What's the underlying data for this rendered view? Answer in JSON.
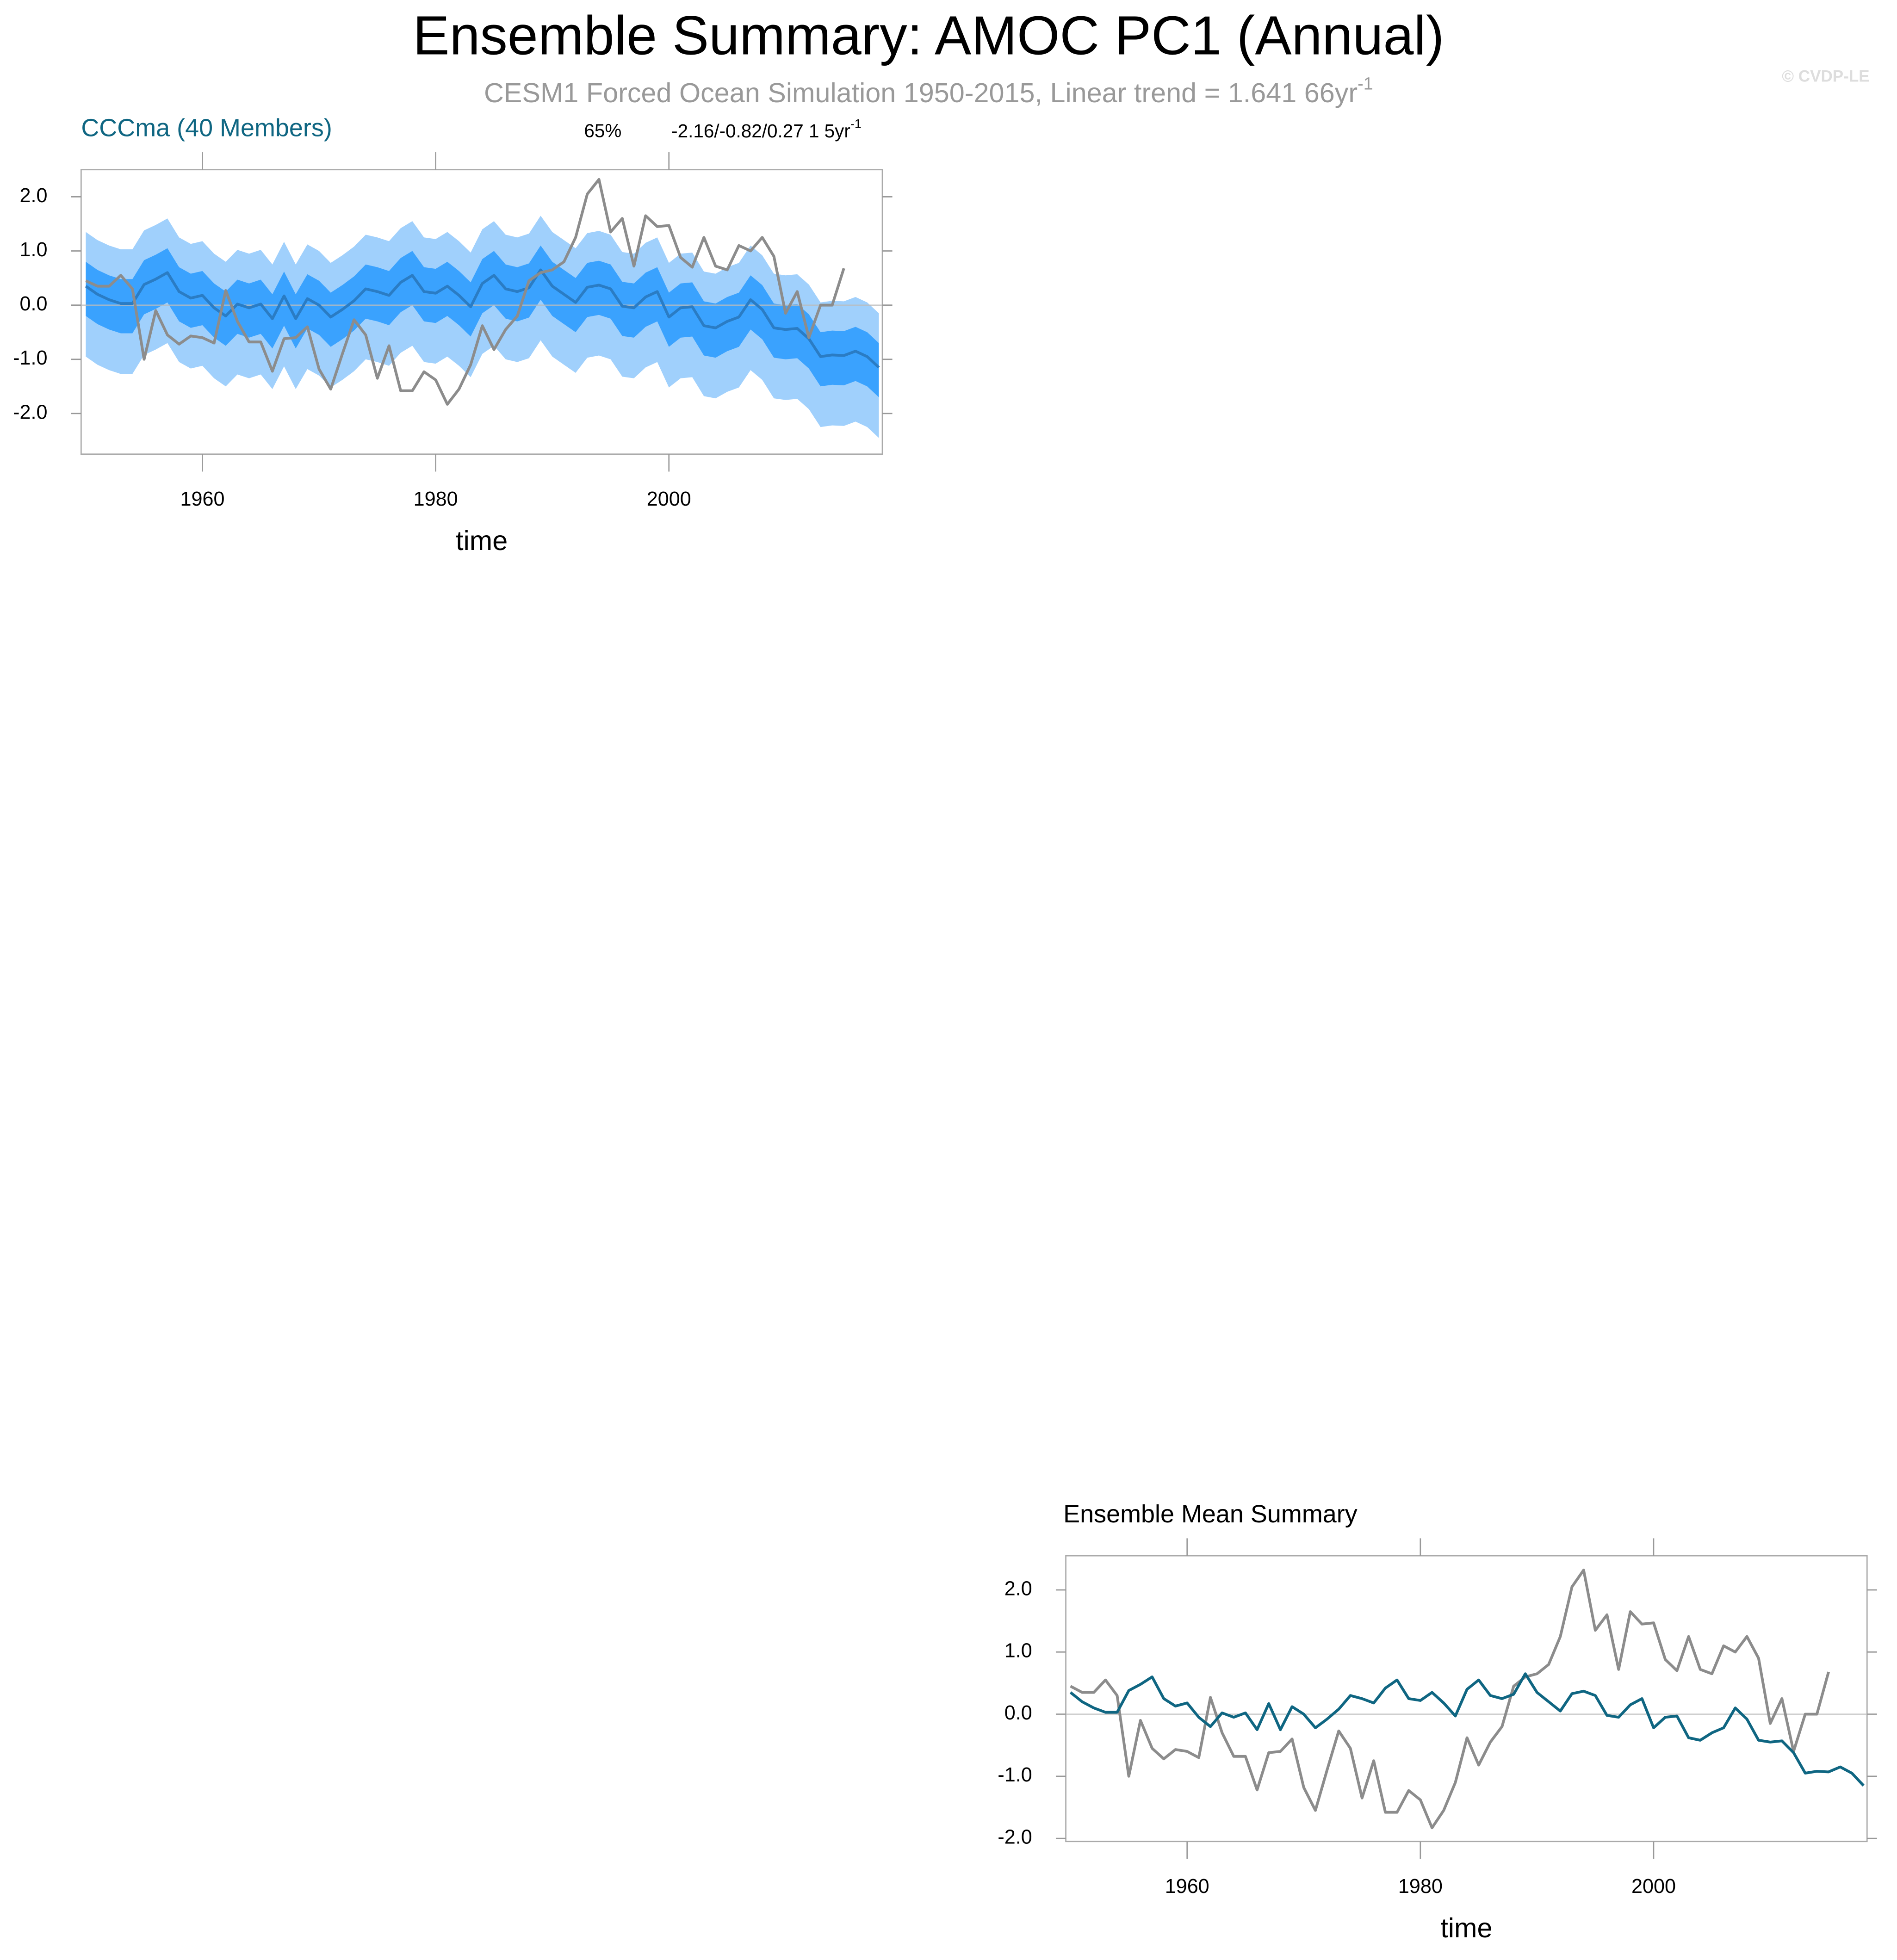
{
  "header": {
    "title": "Ensemble Summary: AMOC PC1 (Annual)",
    "subtitle": {
      "text": "CESM1 Forced Ocean Simulation 1950-2015, Linear trend = 1.641 66yr",
      "superscript": "-1"
    },
    "copyright": "© CVDP-LE"
  },
  "chart_data": [
    {
      "type": "band",
      "title": "CCCma (40 Members)",
      "annotations": [
        {
          "text": "65%"
        },
        {
          "text": "-2.16/-0.82/0.27 1 5yr",
          "superscript": "-1"
        }
      ],
      "x_label": "time",
      "x": [
        1950,
        1951,
        1952,
        1953,
        1954,
        1955,
        1956,
        1957,
        1958,
        1959,
        1960,
        1961,
        1962,
        1963,
        1964,
        1965,
        1966,
        1967,
        1968,
        1969,
        1970,
        1971,
        1972,
        1973,
        1974,
        1975,
        1976,
        1977,
        1978,
        1979,
        1980,
        1981,
        1982,
        1983,
        1984,
        1985,
        1986,
        1987,
        1988,
        1989,
        1990,
        1991,
        1992,
        1993,
        1994,
        1995,
        1996,
        1997,
        1998,
        1999,
        2000,
        2001,
        2002,
        2003,
        2004,
        2005,
        2006,
        2007,
        2008,
        2009,
        2010,
        2011,
        2012,
        2013,
        2014,
        2015,
        2016,
        2017,
        2018
      ],
      "xlim": [
        1949.6,
        2018.3
      ],
      "xticks": [
        1960,
        1980,
        2000
      ],
      "ylim": [
        -2.75,
        2.5
      ],
      "yticks": [
        {
          "value": 2,
          "label": "2.0"
        },
        {
          "value": 1,
          "label": "1.0"
        },
        {
          "value": 0,
          "label": "0.0"
        },
        {
          "value": -1,
          "label": "-1.0"
        },
        {
          "value": -2,
          "label": "-2.0"
        }
      ],
      "bands": [
        {
          "color": "#a0d0fc",
          "upper": [
            1.35,
            1.2,
            1.1,
            1.03,
            1.03,
            1.38,
            1.48,
            1.6,
            1.25,
            1.13,
            1.18,
            0.95,
            0.8,
            1.02,
            0.95,
            1.02,
            0.75,
            1.17,
            0.75,
            1.12,
            1.0,
            0.78,
            0.92,
            1.08,
            1.3,
            1.25,
            1.18,
            1.42,
            1.55,
            1.25,
            1.22,
            1.35,
            1.18,
            0.97,
            1.4,
            1.55,
            1.3,
            1.25,
            1.32,
            1.65,
            1.35,
            1.2,
            1.05,
            1.33,
            1.37,
            1.3,
            0.98,
            0.95,
            1.15,
            1.25,
            0.78,
            0.95,
            0.97,
            0.62,
            0.58,
            0.7,
            0.78,
            1.1,
            0.92,
            0.58,
            0.55,
            0.57,
            0.38,
            0.05,
            0.08,
            0.07,
            0.15,
            0.05,
            -0.15
          ],
          "lower": [
            -0.95,
            -1.1,
            -1.2,
            -1.27,
            -1.27,
            -0.92,
            -0.82,
            -0.7,
            -1.05,
            -1.17,
            -1.12,
            -1.35,
            -1.5,
            -1.28,
            -1.35,
            -1.28,
            -1.55,
            -1.13,
            -1.55,
            -1.18,
            -1.3,
            -1.52,
            -1.38,
            -1.22,
            -1.0,
            -1.05,
            -1.12,
            -0.88,
            -0.75,
            -1.05,
            -1.08,
            -0.95,
            -1.12,
            -1.33,
            -0.9,
            -0.75,
            -1.0,
            -1.05,
            -0.98,
            -0.65,
            -0.95,
            -1.1,
            -1.25,
            -0.97,
            -0.93,
            -1.0,
            -1.32,
            -1.35,
            -1.15,
            -1.05,
            -1.52,
            -1.35,
            -1.33,
            -1.68,
            -1.72,
            -1.6,
            -1.52,
            -1.2,
            -1.38,
            -1.72,
            -1.75,
            -1.73,
            -1.92,
            -2.25,
            -2.22,
            -2.23,
            -2.15,
            -2.25,
            -2.45
          ]
        },
        {
          "color": "#3aa2fe",
          "upper": [
            0.8,
            0.65,
            0.55,
            0.48,
            0.48,
            0.83,
            0.93,
            1.05,
            0.7,
            0.58,
            0.63,
            0.4,
            0.25,
            0.47,
            0.4,
            0.47,
            0.2,
            0.62,
            0.2,
            0.57,
            0.45,
            0.23,
            0.37,
            0.53,
            0.75,
            0.7,
            0.63,
            0.87,
            1.0,
            0.7,
            0.67,
            0.8,
            0.63,
            0.42,
            0.85,
            1.0,
            0.75,
            0.7,
            0.77,
            1.1,
            0.8,
            0.65,
            0.5,
            0.78,
            0.82,
            0.75,
            0.43,
            0.4,
            0.6,
            0.7,
            0.23,
            0.4,
            0.42,
            0.07,
            0.03,
            0.15,
            0.23,
            0.55,
            0.37,
            0.03,
            0.0,
            0.02,
            -0.17,
            -0.5,
            -0.47,
            -0.48,
            -0.4,
            -0.5,
            -0.7
          ],
          "lower": [
            -0.2,
            -0.35,
            -0.45,
            -0.52,
            -0.52,
            -0.17,
            -0.07,
            0.05,
            -0.3,
            -0.42,
            -0.37,
            -0.6,
            -0.75,
            -0.53,
            -0.6,
            -0.53,
            -0.8,
            -0.38,
            -0.8,
            -0.43,
            -0.55,
            -0.77,
            -0.63,
            -0.47,
            -0.25,
            -0.3,
            -0.37,
            -0.13,
            0.0,
            -0.3,
            -0.33,
            -0.2,
            -0.37,
            -0.58,
            -0.15,
            0.0,
            -0.25,
            -0.3,
            -0.23,
            0.1,
            -0.2,
            -0.35,
            -0.5,
            -0.22,
            -0.18,
            -0.25,
            -0.57,
            -0.6,
            -0.4,
            -0.3,
            -0.77,
            -0.6,
            -0.58,
            -0.93,
            -0.97,
            -0.85,
            -0.77,
            -0.45,
            -0.63,
            -0.97,
            -1.0,
            -0.98,
            -1.17,
            -1.5,
            -1.47,
            -1.48,
            -1.4,
            -1.5,
            -1.7
          ]
        }
      ],
      "series": [
        {
          "color": "#2a7cc4",
          "values": [
            0.35,
            0.2,
            0.1,
            0.03,
            0.03,
            0.38,
            0.48,
            0.6,
            0.25,
            0.13,
            0.18,
            -0.05,
            -0.2,
            0.02,
            -0.05,
            0.02,
            -0.25,
            0.17,
            -0.25,
            0.12,
            0.0,
            -0.22,
            -0.08,
            0.08,
            0.3,
            0.25,
            0.18,
            0.42,
            0.55,
            0.25,
            0.22,
            0.35,
            0.18,
            -0.03,
            0.4,
            0.55,
            0.3,
            0.25,
            0.32,
            0.65,
            0.35,
            0.2,
            0.05,
            0.33,
            0.37,
            0.3,
            -0.02,
            -0.05,
            0.15,
            0.25,
            -0.22,
            -0.05,
            -0.03,
            -0.38,
            -0.42,
            -0.3,
            -0.22,
            0.1,
            -0.08,
            -0.42,
            -0.45,
            -0.43,
            -0.62,
            -0.95,
            -0.92,
            -0.93,
            -0.85,
            -0.95,
            -1.15
          ]
        },
        {
          "color": "#8c8c8c",
          "values": [
            0.45,
            0.35,
            0.35,
            0.55,
            0.3,
            -1.0,
            -0.1,
            -0.55,
            -0.72,
            -0.57,
            -0.6,
            -0.7,
            0.27,
            -0.3,
            -0.68,
            -0.68,
            -1.22,
            -0.62,
            -0.6,
            -0.4,
            -1.18,
            -1.55,
            -0.9,
            -0.27,
            -0.55,
            -1.35,
            -0.75,
            -1.58,
            -1.58,
            -1.23,
            -1.38,
            -1.83,
            -1.55,
            -1.1,
            -0.38,
            -0.82,
            -0.45,
            -0.2,
            0.45,
            0.6,
            0.65,
            0.8,
            1.25,
            2.05,
            2.32,
            1.35,
            1.6,
            0.72,
            1.65,
            1.45,
            1.47,
            0.88,
            0.7,
            1.25,
            0.72,
            0.65,
            1.1,
            1.0,
            1.25,
            0.9,
            -0.15,
            0.25,
            -0.6,
            0.0,
            0.0,
            0.68,
            null,
            null,
            null
          ]
        }
      ]
    },
    {
      "type": "line",
      "title": "Ensemble Mean Summary",
      "x_label": "time",
      "x": [
        1950,
        1951,
        1952,
        1953,
        1954,
        1955,
        1956,
        1957,
        1958,
        1959,
        1960,
        1961,
        1962,
        1963,
        1964,
        1965,
        1966,
        1967,
        1968,
        1969,
        1970,
        1971,
        1972,
        1973,
        1974,
        1975,
        1976,
        1977,
        1978,
        1979,
        1980,
        1981,
        1982,
        1983,
        1984,
        1985,
        1986,
        1987,
        1988,
        1989,
        1990,
        1991,
        1992,
        1993,
        1994,
        1995,
        1996,
        1997,
        1998,
        1999,
        2000,
        2001,
        2002,
        2003,
        2004,
        2005,
        2006,
        2007,
        2008,
        2009,
        2010,
        2011,
        2012,
        2013,
        2014,
        2015,
        2016,
        2017,
        2018
      ],
      "xlim": [
        1949.6,
        2018.3
      ],
      "xticks": [
        1960,
        1980,
        2000
      ],
      "ylim": [
        -2.05,
        2.55
      ],
      "yticks": [
        {
          "value": 2,
          "label": "2.0"
        },
        {
          "value": 1,
          "label": "1.0"
        },
        {
          "value": 0,
          "label": "0.0"
        },
        {
          "value": -1,
          "label": "-1.0"
        },
        {
          "value": -2,
          "label": "-2.0"
        }
      ],
      "series": [
        {
          "color": "#8c8c8c",
          "values": [
            0.45,
            0.35,
            0.35,
            0.55,
            0.3,
            -1.0,
            -0.1,
            -0.55,
            -0.72,
            -0.57,
            -0.6,
            -0.7,
            0.27,
            -0.3,
            -0.68,
            -0.68,
            -1.22,
            -0.62,
            -0.6,
            -0.4,
            -1.18,
            -1.55,
            -0.9,
            -0.27,
            -0.55,
            -1.35,
            -0.75,
            -1.58,
            -1.58,
            -1.23,
            -1.38,
            -1.83,
            -1.55,
            -1.1,
            -0.38,
            -0.82,
            -0.45,
            -0.2,
            0.45,
            0.6,
            0.65,
            0.8,
            1.25,
            2.05,
            2.32,
            1.35,
            1.6,
            0.72,
            1.65,
            1.45,
            1.47,
            0.88,
            0.7,
            1.25,
            0.72,
            0.65,
            1.1,
            1.0,
            1.25,
            0.9,
            -0.15,
            0.25,
            -0.6,
            0.0,
            0.0,
            0.68,
            null,
            null,
            null
          ]
        },
        {
          "color": "#0f6682",
          "values": [
            0.35,
            0.2,
            0.1,
            0.03,
            0.03,
            0.38,
            0.48,
            0.6,
            0.25,
            0.13,
            0.18,
            -0.05,
            -0.2,
            0.02,
            -0.05,
            0.02,
            -0.25,
            0.17,
            -0.25,
            0.12,
            0.0,
            -0.22,
            -0.08,
            0.08,
            0.3,
            0.25,
            0.18,
            0.42,
            0.55,
            0.25,
            0.22,
            0.35,
            0.18,
            -0.03,
            0.4,
            0.55,
            0.3,
            0.25,
            0.32,
            0.65,
            0.35,
            0.2,
            0.05,
            0.33,
            0.37,
            0.3,
            -0.02,
            -0.05,
            0.15,
            0.25,
            -0.22,
            -0.05,
            -0.03,
            -0.38,
            -0.42,
            -0.3,
            -0.22,
            0.1,
            -0.08,
            -0.42,
            -0.45,
            -0.43,
            -0.62,
            -0.95,
            -0.92,
            -0.93,
            -0.85,
            -0.95,
            -1.15
          ]
        }
      ]
    }
  ]
}
